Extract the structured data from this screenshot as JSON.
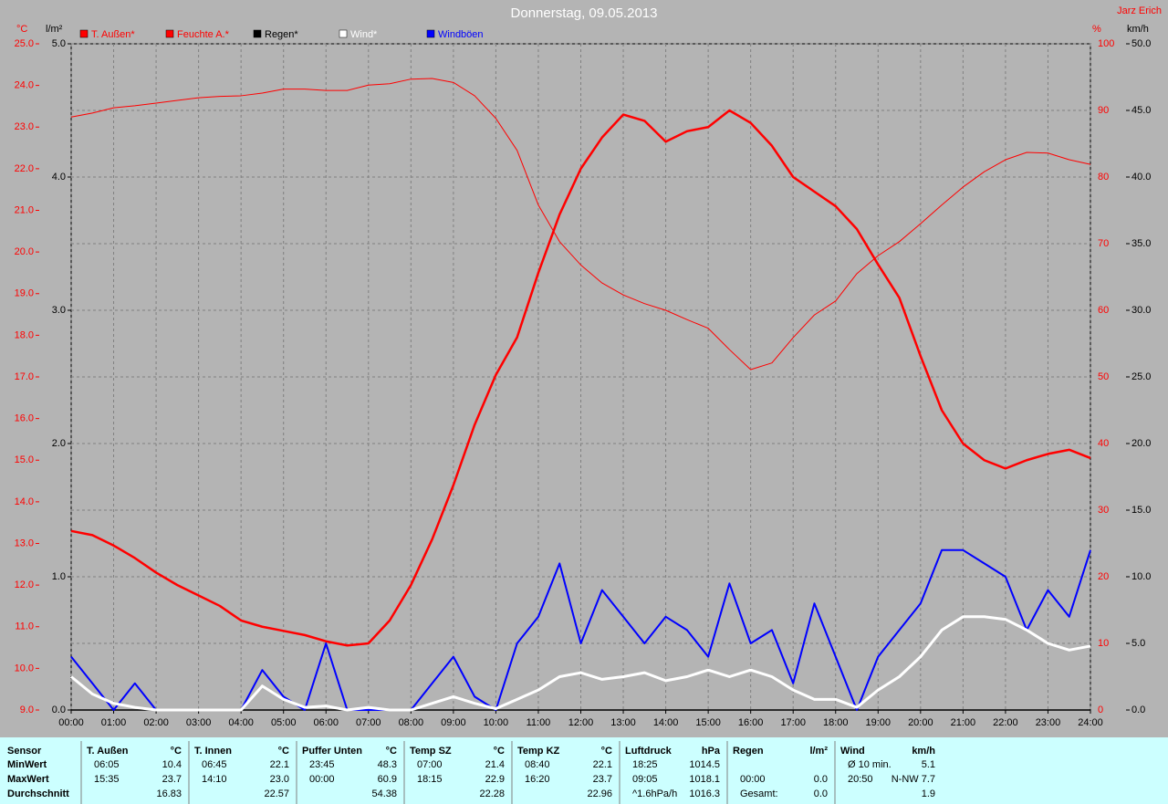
{
  "chart_data": {
    "type": "line",
    "title": "Donnerstag, 09.05.2013",
    "author": "Jarz Erich",
    "ylabel": "°C",
    "y2label": "%",
    "y3label": "l/m²",
    "y4label": "km/h",
    "grid": true,
    "x": [
      0,
      0.5,
      1,
      1.5,
      2,
      2.5,
      3,
      3.5,
      4,
      4.5,
      5,
      5.5,
      6,
      6.5,
      7,
      7.5,
      8,
      8.5,
      9,
      9.5,
      10,
      10.5,
      11,
      11.5,
      12,
      12.5,
      13,
      13.5,
      14,
      14.5,
      15,
      15.5,
      16,
      16.5,
      17,
      17.5,
      18,
      18.5,
      19,
      19.5,
      20,
      20.5,
      21,
      21.5,
      22,
      22.5,
      23,
      23.5,
      24
    ],
    "xlim": [
      0,
      24
    ],
    "xticks": [
      {
        "value": 0,
        "label": "00:00"
      },
      {
        "value": 1,
        "label": "01:00"
      },
      {
        "value": 2,
        "label": "02:00"
      },
      {
        "value": 3,
        "label": "03:00"
      },
      {
        "value": 4,
        "label": "04:00"
      },
      {
        "value": 5,
        "label": "05:00"
      },
      {
        "value": 6,
        "label": "06:00"
      },
      {
        "value": 7,
        "label": "07:00"
      },
      {
        "value": 8,
        "label": "08:00"
      },
      {
        "value": 9,
        "label": "09:00"
      },
      {
        "value": 10,
        "label": "10:00"
      },
      {
        "value": 11,
        "label": "11:00"
      },
      {
        "value": 12,
        "label": "12:00"
      },
      {
        "value": 13,
        "label": "13:00"
      },
      {
        "value": 14,
        "label": "14:00"
      },
      {
        "value": 15,
        "label": "15:00"
      },
      {
        "value": 16,
        "label": "16:00"
      },
      {
        "value": 17,
        "label": "17:00"
      },
      {
        "value": 18,
        "label": "18:00"
      },
      {
        "value": 19,
        "label": "19:00"
      },
      {
        "value": 20,
        "label": "20:00"
      },
      {
        "value": 21,
        "label": "21:00"
      },
      {
        "value": 22,
        "label": "22:00"
      },
      {
        "value": 23,
        "label": "23:00"
      },
      {
        "value": 24,
        "label": "24:00"
      }
    ],
    "ylim": [
      9,
      25
    ],
    "yticks": [
      {
        "value": 9,
        "label": "9.0"
      },
      {
        "value": 10,
        "label": "10.0"
      },
      {
        "value": 11,
        "label": "11.0"
      },
      {
        "value": 12,
        "label": "12.0"
      },
      {
        "value": 13,
        "label": "13.0"
      },
      {
        "value": 14,
        "label": "14.0"
      },
      {
        "value": 15,
        "label": "15.0"
      },
      {
        "value": 16,
        "label": "16.0"
      },
      {
        "value": 17,
        "label": "17.0"
      },
      {
        "value": 18,
        "label": "18.0"
      },
      {
        "value": 19,
        "label": "19.0"
      },
      {
        "value": 20,
        "label": "20.0"
      },
      {
        "value": 21,
        "label": "21.0"
      },
      {
        "value": 22,
        "label": "22.0"
      },
      {
        "value": 23,
        "label": "23.0"
      },
      {
        "value": 24,
        "label": "24.0"
      },
      {
        "value": 25,
        "label": "25.0"
      }
    ],
    "y2lim": [
      0,
      100
    ],
    "y2ticks": [
      0,
      10,
      20,
      30,
      40,
      50,
      60,
      70,
      80,
      90,
      100
    ],
    "y3lim": [
      0,
      5
    ],
    "y3ticks": [
      {
        "value": 0,
        "label": "0.0"
      },
      {
        "value": 1,
        "label": "1.0"
      },
      {
        "value": 2,
        "label": "2.0"
      },
      {
        "value": 3,
        "label": "3.0"
      },
      {
        "value": 4,
        "label": "4.0"
      },
      {
        "value": 5,
        "label": "5.0"
      }
    ],
    "y4lim": [
      0,
      50
    ],
    "y4ticks": [
      {
        "value": 0,
        "label": "0.0"
      },
      {
        "value": 5,
        "label": "5.0"
      },
      {
        "value": 10,
        "label": "10.0"
      },
      {
        "value": 15,
        "label": "15.0"
      },
      {
        "value": 20,
        "label": "20.0"
      },
      {
        "value": 25,
        "label": "25.0"
      },
      {
        "value": 30,
        "label": "30.0"
      },
      {
        "value": 35,
        "label": "35.0"
      },
      {
        "value": 40,
        "label": "40.0"
      },
      {
        "value": 45,
        "label": "45.0"
      },
      {
        "value": 50,
        "label": "50.0"
      }
    ],
    "series": [
      {
        "name": "T. Außen*",
        "color": "#ff0000",
        "axis": "y",
        "width": 2.5,
        "values": [
          13.3,
          13.2,
          12.95,
          12.65,
          12.3,
          12.0,
          11.75,
          11.5,
          11.15,
          11.0,
          10.9,
          10.8,
          10.65,
          10.55,
          10.6,
          11.15,
          12.0,
          13.1,
          14.4,
          15.85,
          17.05,
          17.95,
          19.5,
          20.9,
          22.0,
          22.75,
          23.3,
          23.15,
          22.65,
          22.9,
          23.0,
          23.4,
          23.1,
          22.55,
          21.8,
          21.45,
          21.1,
          20.55,
          19.7,
          18.9,
          17.5,
          16.2,
          15.4,
          15.0,
          14.8,
          15.0,
          15.15,
          15.25,
          15.05
        ]
      },
      {
        "name": "Feuchte A.*",
        "color": "#ff0000",
        "axis": "y2",
        "width": 1,
        "values": [
          89,
          89.6,
          90.4,
          90.7,
          91.1,
          91.5,
          91.9,
          92.1,
          92.2,
          92.6,
          93.2,
          93.2,
          93.0,
          93.0,
          93.8,
          94.0,
          94.7,
          94.8,
          94.2,
          92.2,
          88.8,
          84.0,
          75.8,
          70.3,
          66.8,
          64.1,
          62.3,
          61.0,
          60.0,
          58.6,
          57.3,
          54.1,
          51.1,
          52.1,
          55.9,
          59.3,
          61.4,
          65.5,
          68.2,
          70.3,
          73.0,
          75.8,
          78.5,
          80.8,
          82.6,
          83.7,
          83.6,
          82.6,
          81.9
        ]
      },
      {
        "name": "Regen*",
        "color": "#000000",
        "axis": "y3",
        "width": 1.5,
        "values": [
          0,
          0,
          0,
          0,
          0,
          0,
          0,
          0,
          0,
          0,
          0,
          0,
          0,
          0,
          0,
          0,
          0,
          0,
          0,
          0,
          0,
          0,
          0,
          0,
          0,
          0,
          0,
          0,
          0,
          0,
          0,
          0,
          0,
          0,
          0,
          0,
          0,
          0,
          0,
          0,
          0,
          0,
          0,
          0,
          0,
          0,
          0,
          0,
          0
        ]
      },
      {
        "name": "Wind*",
        "color": "#ffffff",
        "axis": "y4",
        "width": 3,
        "values": [
          2.5,
          1.2,
          0.5,
          0.2,
          0,
          0,
          0,
          0,
          0,
          1.8,
          0.8,
          0.2,
          0.3,
          0,
          0.2,
          0,
          0,
          0.5,
          1.0,
          0.5,
          0.1,
          0.8,
          1.5,
          2.5,
          2.8,
          2.3,
          2.5,
          2.8,
          2.2,
          2.5,
          3.0,
          2.5,
          3.0,
          2.5,
          1.5,
          0.8,
          0.8,
          0.2,
          1.5,
          2.5,
          4.0,
          6.0,
          7.0,
          7.0,
          6.8,
          6.0,
          5.0,
          4.5,
          4.8
        ]
      },
      {
        "name": "Windböen",
        "color": "#0000ff",
        "axis": "y4",
        "width": 2,
        "values": [
          4,
          2,
          0,
          2,
          0,
          0,
          0,
          0,
          0,
          3,
          1,
          0,
          5,
          0,
          0,
          0,
          0,
          2,
          4,
          1,
          0,
          5,
          7,
          11,
          5,
          9,
          7,
          5,
          7,
          6,
          4,
          9.5,
          5,
          6,
          2,
          8,
          4,
          0,
          4,
          6,
          8,
          12,
          12,
          11,
          10,
          6,
          9,
          7,
          12
        ]
      }
    ]
  },
  "table": {
    "sensor_header": "Sensor",
    "row_labels": [
      "MinWert",
      "MaxWert",
      "Durchschnitt"
    ],
    "columns": [
      {
        "header": "T. Außen",
        "unit": "°C",
        "rows": [
          [
            "06:05",
            "10.4"
          ],
          [
            "15:35",
            "23.7"
          ],
          [
            "16.83"
          ]
        ]
      },
      {
        "header": "T. Innen",
        "unit": "°C",
        "rows": [
          [
            "06:45",
            "22.1"
          ],
          [
            "14:10",
            "23.0"
          ],
          [
            "22.57"
          ]
        ]
      },
      {
        "header": "Puffer Unten",
        "unit": "°C",
        "rows": [
          [
            "23:45",
            "48.3"
          ],
          [
            "00:00",
            "60.9"
          ],
          [
            "54.38"
          ]
        ]
      },
      {
        "header": "Temp SZ",
        "unit": "°C",
        "rows": [
          [
            "07:00",
            "21.4"
          ],
          [
            "18:15",
            "22.9"
          ],
          [
            "22.28"
          ]
        ]
      },
      {
        "header": "Temp KZ",
        "unit": "°C",
        "rows": [
          [
            "08:40",
            "22.1"
          ],
          [
            "16:20",
            "23.7"
          ],
          [
            "22.96"
          ]
        ]
      },
      {
        "header": "Luftdruck",
        "unit": "hPa",
        "rows": [
          [
            "18:25",
            "1014.5"
          ],
          [
            "09:05",
            "1018.1"
          ],
          [
            "^1.6hPa/h",
            "1016.3"
          ]
        ]
      },
      {
        "header": "Regen",
        "unit": "l/m²",
        "rows": [
          [],
          [
            "00:00",
            "0.0"
          ],
          [
            "Gesamt:",
            "0.0"
          ]
        ]
      },
      {
        "header": "Wind",
        "unit": "km/h",
        "rows": [
          [
            "Ø 10 min.",
            "5.1"
          ],
          [
            "20:50",
            "N-NW 7.7"
          ],
          [
            "1.9"
          ]
        ]
      }
    ]
  }
}
